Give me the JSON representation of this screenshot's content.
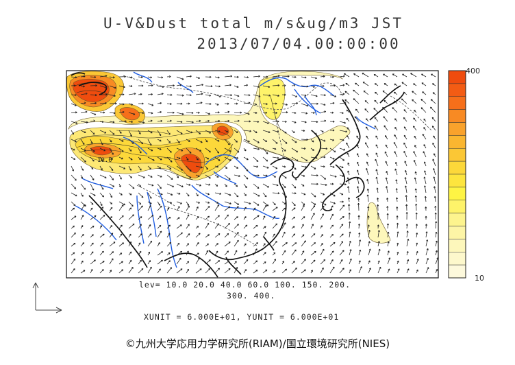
{
  "header": {
    "title_line1": "U-V&Dust total m/s&ug/m3 JST",
    "title_line2": "2013/07/04.00:00:00"
  },
  "legend": {
    "max_label": "400",
    "min_label": "10",
    "colors": [
      "#ef4c0e",
      "#f35c14",
      "#f66f1a",
      "#f88a23",
      "#f9a22c",
      "#fab630",
      "#fbc735",
      "#fcd83a",
      "#fde53e",
      "#fef444",
      "#fef36a",
      "#fdf48e",
      "#fdf5a6",
      "#fdf7bb",
      "#fdf8cc",
      "#fdf9dc"
    ]
  },
  "levels": {
    "line1": "lev= 10.0 20.0 40.0 60.0 100. 150. 200.",
    "line2": "300. 400."
  },
  "units": {
    "text": "XUNIT = 6.000E+01, YUNIT = 6.000E+01"
  },
  "map": {
    "contour_label": "10.0",
    "coast_color": "#111111",
    "river_color": "#1f5de0",
    "border_color": "#666666"
  },
  "credit": {
    "text": "©九州大学応用力学研究所(RIAM)/国立環境研究所(NIES)"
  }
}
